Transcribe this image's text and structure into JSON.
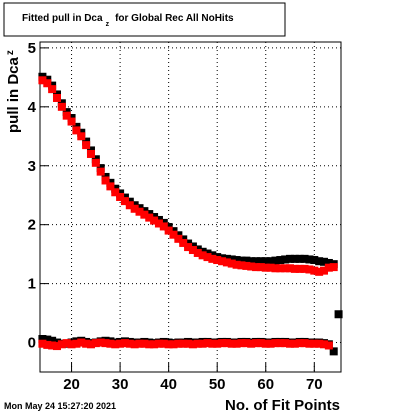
{
  "chart_data": {
    "type": "scatter",
    "title": {
      "main": "Fitted pull in Dca",
      "subscript": "z",
      "rest": "for Global Rec All NoHits"
    },
    "y_label": {
      "main": "pull in Dca",
      "subscript": "z"
    },
    "x_label": "No. of Fit Points",
    "footer": "Mon May 24 15:27:20 2021",
    "x": [
      14,
      15,
      16,
      17,
      18,
      19,
      20,
      21,
      22,
      23,
      24,
      25,
      26,
      27,
      28,
      29,
      30,
      31,
      32,
      33,
      34,
      35,
      36,
      37,
      38,
      39,
      40,
      41,
      42,
      43,
      44,
      45,
      46,
      47,
      48,
      49,
      50,
      51,
      52,
      53,
      54,
      55,
      56,
      57,
      58,
      59,
      60,
      61,
      62,
      63,
      64,
      65,
      66,
      67,
      68,
      69,
      70,
      71,
      72,
      73,
      74,
      75
    ],
    "series": [
      {
        "color": "#000000",
        "values": [
          4.51,
          4.46,
          4.36,
          4.21,
          4.06,
          3.91,
          3.81,
          3.66,
          3.56,
          3.41,
          3.26,
          3.11,
          2.96,
          2.81,
          2.71,
          2.61,
          2.53,
          2.46,
          2.39,
          2.33,
          2.28,
          2.23,
          2.18,
          2.13,
          2.08,
          2.03,
          1.96,
          1.89,
          1.82,
          1.75,
          1.68,
          1.63,
          1.58,
          1.54,
          1.51,
          1.48,
          1.45,
          1.43,
          1.42,
          1.41,
          1.4,
          1.39,
          1.39,
          1.38,
          1.38,
          1.38,
          1.38,
          1.38,
          1.39,
          1.4,
          1.41,
          1.42,
          1.42,
          1.42,
          1.42,
          1.41,
          1.4,
          1.38,
          1.37,
          1.35,
          1.33,
          null
        ]
      },
      {
        "color": "#000000",
        "values": [
          0.06,
          0.05,
          0.03,
          0.0,
          -0.02,
          -0.02,
          0.0,
          0.02,
          0.03,
          0.01,
          -0.01,
          0.0,
          0.02,
          0.03,
          0.02,
          0.0,
          0.01,
          0.02,
          0.01,
          0.0,
          0.0,
          0.01,
          0.0,
          -0.01,
          0.0,
          0.01,
          0.0,
          -0.01,
          0.0,
          0.0,
          0.01,
          0.0,
          0.0,
          0.01,
          0.01,
          0.0,
          0.0,
          0.01,
          0.01,
          0.0,
          0.0,
          0.01,
          0.01,
          0.0,
          0.01,
          0.01,
          0.0,
          0.0,
          0.01,
          0.01,
          0.01,
          0.0,
          0.0,
          0.01,
          0.01,
          0.0,
          0.0,
          0.0,
          -0.01,
          -0.03,
          -0.15,
          0.48
        ]
      },
      {
        "color": "#ff0000",
        "values": [
          4.45,
          4.4,
          4.3,
          4.15,
          4.0,
          3.85,
          3.75,
          3.6,
          3.5,
          3.35,
          3.2,
          3.05,
          2.9,
          2.75,
          2.65,
          2.55,
          2.47,
          2.4,
          2.33,
          2.27,
          2.22,
          2.17,
          2.12,
          2.07,
          2.02,
          1.97,
          1.9,
          1.83,
          1.76,
          1.69,
          1.62,
          1.57,
          1.52,
          1.48,
          1.45,
          1.42,
          1.4,
          1.38,
          1.36,
          1.34,
          1.32,
          1.31,
          1.3,
          1.29,
          1.28,
          1.28,
          1.27,
          1.27,
          1.26,
          1.26,
          1.26,
          1.26,
          1.25,
          1.25,
          1.25,
          1.24,
          1.22,
          1.2,
          1.22,
          1.27,
          1.28,
          null
        ]
      },
      {
        "color": "#ff0000",
        "values": [
          -0.02,
          -0.04,
          -0.05,
          -0.06,
          -0.03,
          -0.01,
          -0.03,
          -0.02,
          0.0,
          -0.02,
          -0.03,
          -0.01,
          0.0,
          -0.01,
          -0.02,
          -0.03,
          -0.02,
          -0.01,
          -0.02,
          -0.03,
          -0.02,
          -0.02,
          -0.03,
          -0.03,
          -0.02,
          -0.02,
          -0.03,
          -0.03,
          -0.02,
          -0.02,
          -0.02,
          -0.03,
          -0.02,
          -0.02,
          -0.01,
          -0.02,
          -0.02,
          -0.01,
          -0.01,
          -0.02,
          -0.02,
          -0.01,
          -0.01,
          -0.02,
          -0.01,
          -0.01,
          -0.02,
          -0.02,
          -0.01,
          -0.01,
          -0.01,
          -0.02,
          -0.02,
          -0.01,
          -0.01,
          -0.02,
          -0.02,
          -0.02,
          -0.03,
          -0.05,
          null,
          null
        ]
      }
    ],
    "xlim": [
      13.5,
      75.5
    ],
    "ylim": [
      -0.5,
      5.1
    ],
    "xticks": [
      20,
      30,
      40,
      50,
      60,
      70
    ],
    "yticks": [
      0,
      1,
      2,
      3,
      4,
      5
    ],
    "grid": true
  }
}
